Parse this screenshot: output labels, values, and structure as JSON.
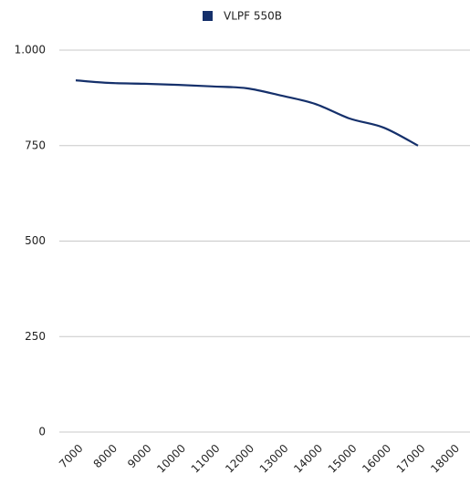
{
  "chart_data": {
    "type": "line",
    "categories": [
      "7000",
      "8000",
      "9000",
      "10000",
      "11000",
      "12000",
      "13000",
      "14000",
      "15000",
      "16000",
      "17000",
      "18000"
    ],
    "series": [
      {
        "name": "VLPF 550B",
        "color": "#15306b",
        "values": [
          921,
          914,
          912,
          909,
          905,
          900,
          881,
          859,
          821,
          797,
          750,
          null
        ]
      }
    ],
    "ylim": [
      0,
      1000
    ],
    "yticks": [
      0,
      250,
      500,
      750,
      {
        "value": 1000,
        "label": "1.000"
      }
    ],
    "grid": true,
    "legend": "top"
  }
}
